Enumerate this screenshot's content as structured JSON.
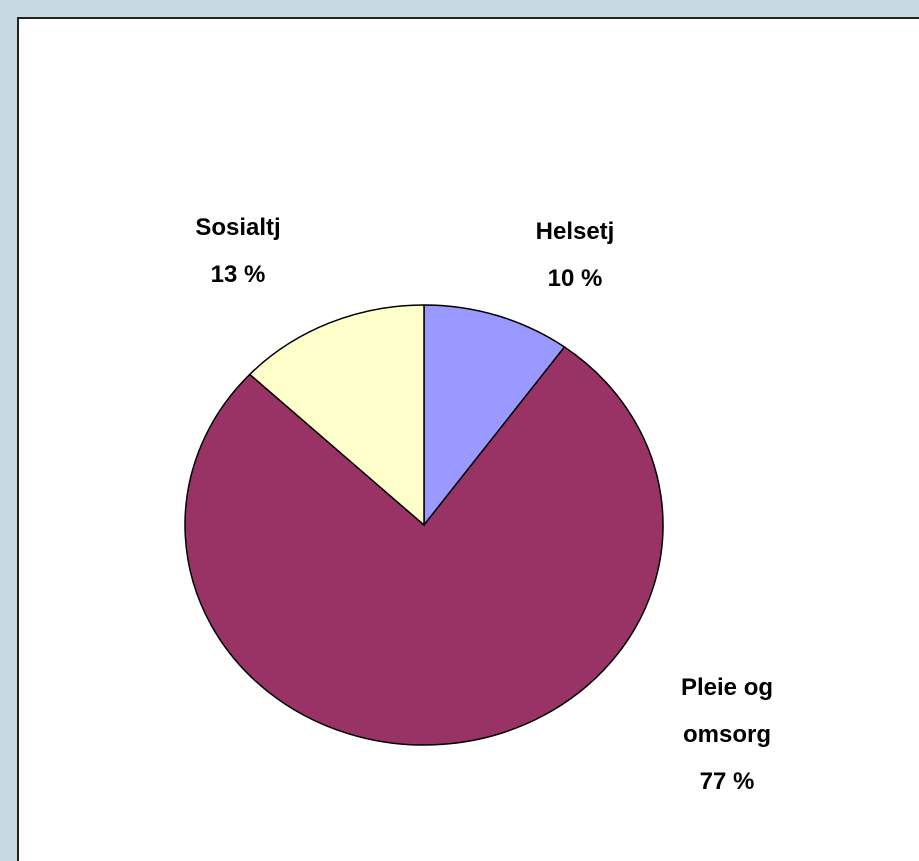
{
  "chart_data": {
    "type": "pie",
    "categories": [
      "Helsetj",
      "Pleie og omsorg",
      "Sosialtj"
    ],
    "values": [
      10,
      77,
      13
    ],
    "value_labels": [
      "10 %",
      "77 %",
      "13 %"
    ],
    "colors": [
      "#9999ff",
      "#993366",
      "#ffffcc"
    ]
  }
}
